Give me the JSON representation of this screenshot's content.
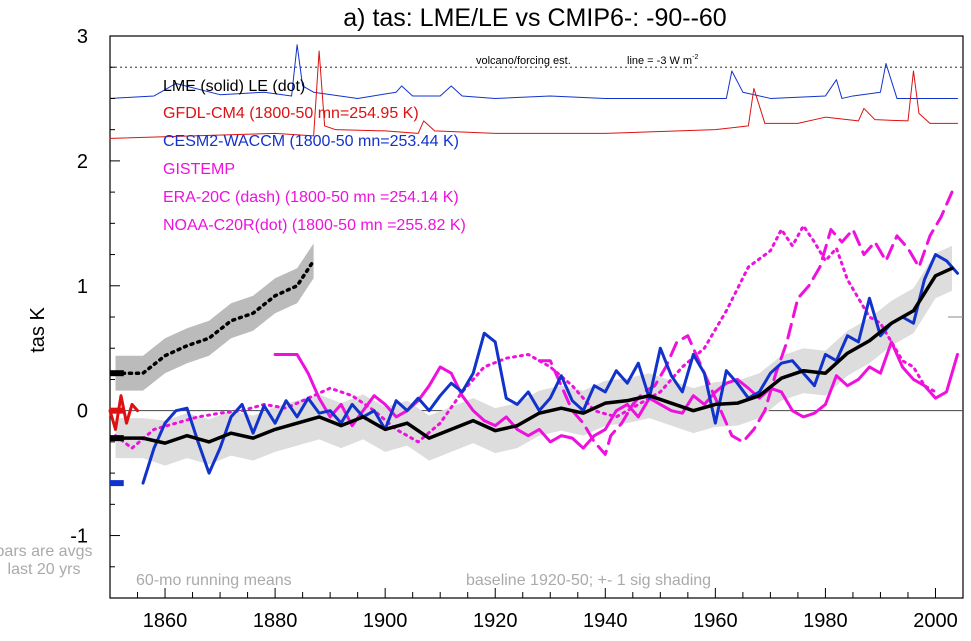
{
  "chart_data": {
    "type": "line",
    "title": "a) tas: LME/LE vs CMIP6-: -90--60",
    "ylabel": "tas K",
    "xlabel": "",
    "xlim": [
      1850,
      2005
    ],
    "ylim": [
      -1.5,
      3.0
    ],
    "xticks": [
      "1860",
      "1880",
      "1900",
      "1920",
      "1940",
      "1960",
      "1980",
      "2000"
    ],
    "yticks": [
      "-1",
      "0",
      "1",
      "2",
      "3"
    ],
    "legend": [
      {
        "label": "LME (solid)   LE (dot)",
        "color": "#000000"
      },
      {
        "label": "GFDL-CM4 (1800-50 mn=254.95 K)",
        "color": "#dd1111"
      },
      {
        "label": "CESM2-WACCM (1800-50 mn=253.44 K)",
        "color": "#1133cc"
      },
      {
        "label": "GISTEMP",
        "color": "#ee11dd"
      },
      {
        "label": "ERA-20C (dash) (1800-50 mn =254.14 K)",
        "color": "#ee11dd"
      },
      {
        "label": "NOAA-C20R(dot) (1800-50 mn =255.82 K)",
        "color": "#ee11dd"
      }
    ],
    "annotations": {
      "volcano": "volcano/forcing est.",
      "forcing_line": "line = -3 W m",
      "forcing_sup": "-2",
      "bars_note_1": "bars are avgs",
      "bars_note_2": "last 20 yrs",
      "running_mean": "60-mo running means",
      "baseline": "baseline 1920-50; +- 1 sig shading"
    },
    "colors": {
      "lme": "#000000",
      "gfdl": "#dd1111",
      "cesm": "#1133cc",
      "obs": "#ee11dd",
      "shade": "#cccccc"
    },
    "series": [
      {
        "name": "LME mean",
        "style": "solid",
        "color": "#000000",
        "x": [
          1851,
          1856,
          1860,
          1864,
          1868,
          1872,
          1876,
          1880,
          1884,
          1888,
          1892,
          1896,
          1900,
          1904,
          1908,
          1912,
          1916,
          1920,
          1924,
          1928,
          1932,
          1936,
          1940,
          1944,
          1948,
          1952,
          1956,
          1960,
          1964,
          1968,
          1972,
          1976,
          1980,
          1984,
          1988,
          1992,
          1996,
          2000,
          2003
        ],
        "values": [
          -0.22,
          -0.22,
          -0.26,
          -0.2,
          -0.25,
          -0.18,
          -0.22,
          -0.15,
          -0.1,
          -0.05,
          -0.12,
          -0.05,
          -0.15,
          -0.1,
          -0.22,
          -0.15,
          -0.08,
          -0.16,
          -0.12,
          -0.02,
          0.02,
          -0.02,
          0.06,
          0.08,
          0.12,
          0.06,
          0.0,
          0.05,
          0.06,
          0.12,
          0.26,
          0.32,
          0.3,
          0.46,
          0.56,
          0.7,
          0.8,
          1.08,
          1.14
        ],
        "band": [
          0.16,
          0.16,
          0.18,
          0.18,
          0.18,
          0.18,
          0.18,
          0.18,
          0.18,
          0.18,
          0.18,
          0.18,
          0.18,
          0.18,
          0.18,
          0.18,
          0.18,
          0.18,
          0.18,
          0.18,
          0.18,
          0.18,
          0.18,
          0.18,
          0.18,
          0.18,
          0.18,
          0.18,
          0.18,
          0.18,
          0.18,
          0.18,
          0.18,
          0.18,
          0.18,
          0.18,
          0.18,
          0.18,
          0.18
        ]
      },
      {
        "name": "LE mean",
        "style": "dot",
        "color": "#000000",
        "x": [
          1851,
          1856,
          1860,
          1864,
          1868,
          1872,
          1876,
          1880,
          1884,
          1887
        ],
        "values": [
          0.3,
          0.3,
          0.44,
          0.52,
          0.58,
          0.72,
          0.78,
          0.92,
          1.0,
          1.2
        ],
        "band": [
          0.14,
          0.14,
          0.14,
          0.14,
          0.14,
          0.14,
          0.14,
          0.14,
          0.14,
          0.14
        ]
      },
      {
        "name": "CESM2-WACCM",
        "style": "solid",
        "color": "#1133cc",
        "x": [
          1856,
          1858,
          1860,
          1862,
          1864,
          1866,
          1868,
          1870,
          1872,
          1874,
          1876,
          1878,
          1880,
          1882,
          1884,
          1886,
          1888,
          1890,
          1892,
          1894,
          1896,
          1898,
          1900,
          1902,
          1904,
          1906,
          1908,
          1910,
          1912,
          1914,
          1916,
          1918,
          1920,
          1922,
          1924,
          1926,
          1928,
          1930,
          1932,
          1934,
          1936,
          1938,
          1940,
          1942,
          1944,
          1946,
          1948,
          1950,
          1952,
          1954,
          1956,
          1958,
          1960,
          1962,
          1964,
          1966,
          1968,
          1970,
          1972,
          1974,
          1976,
          1978,
          1980,
          1982,
          1984,
          1986,
          1988,
          1990,
          1992,
          1994,
          1996,
          1998,
          2000,
          2002,
          2004
        ],
        "values": [
          -0.58,
          -0.3,
          -0.1,
          0.0,
          0.02,
          -0.25,
          -0.5,
          -0.3,
          -0.05,
          0.05,
          -0.18,
          0.04,
          -0.1,
          0.08,
          -0.05,
          0.1,
          -0.02,
          0.0,
          -0.1,
          0.05,
          -0.05,
          0.0,
          -0.15,
          0.08,
          0.0,
          0.1,
          0.0,
          0.12,
          0.22,
          0.15,
          0.3,
          0.62,
          0.55,
          0.1,
          0.05,
          0.15,
          0.0,
          0.1,
          0.28,
          0.08,
          0.0,
          0.2,
          0.15,
          0.32,
          0.22,
          0.38,
          0.1,
          0.5,
          0.28,
          0.15,
          0.45,
          0.3,
          -0.1,
          0.32,
          0.22,
          0.1,
          0.15,
          0.3,
          0.38,
          0.4,
          0.3,
          0.2,
          0.45,
          0.4,
          0.6,
          0.55,
          0.9,
          0.6,
          0.7,
          0.75,
          0.7,
          1.05,
          1.25,
          1.2,
          1.1
        ]
      },
      {
        "name": "GISTEMP",
        "style": "solid",
        "color": "#ee11dd",
        "x": [
          1880,
          1884,
          1886,
          1888,
          1890,
          1892,
          1894,
          1896,
          1898,
          1900,
          1902,
          1904,
          1906,
          1908,
          1910,
          1912,
          1914,
          1916,
          1918,
          1920,
          1922,
          1924,
          1926,
          1928,
          1930,
          1932,
          1934,
          1936,
          1938,
          1940,
          1942,
          1944,
          1946,
          1948,
          1950,
          1952,
          1954,
          1956,
          1958,
          1960,
          1962,
          1964,
          1966,
          1968,
          1970,
          1972,
          1974,
          1976,
          1978,
          1980,
          1982,
          1984,
          1986,
          1988,
          1990,
          1992,
          1994,
          1996,
          1998,
          2000,
          2002,
          2004
        ],
        "values": [
          0.45,
          0.45,
          0.3,
          0.1,
          -0.05,
          0.05,
          -0.12,
          0.0,
          0.12,
          0.05,
          -0.05,
          0.0,
          0.08,
          0.2,
          0.35,
          0.3,
          0.12,
          0.0,
          -0.08,
          -0.12,
          -0.05,
          -0.15,
          -0.2,
          -0.15,
          -0.25,
          -0.2,
          -0.22,
          -0.3,
          -0.2,
          -0.15,
          0.0,
          0.05,
          -0.05,
          0.1,
          0.05,
          0.0,
          -0.02,
          0.12,
          0.05,
          0.15,
          0.22,
          0.25,
          0.18,
          0.1,
          0.18,
          0.15,
          0.0,
          -0.05,
          -0.02,
          0.05,
          0.28,
          0.2,
          0.25,
          0.35,
          0.3,
          0.55,
          0.35,
          0.25,
          0.2,
          0.1,
          0.15,
          0.45
        ]
      },
      {
        "name": "ERA-20C",
        "style": "dash",
        "color": "#ee11dd",
        "x": [
          1928,
          1930,
          1932,
          1934,
          1936,
          1938,
          1940,
          1941,
          1943,
          1945,
          1947,
          1949,
          1951,
          1953,
          1955,
          1957,
          1959,
          1961,
          1963,
          1965,
          1967,
          1969,
          1971,
          1973,
          1975,
          1977,
          1979,
          1981,
          1983,
          1985,
          1987,
          1989,
          1991,
          1993,
          1995,
          1997,
          1999,
          2001,
          2003
        ],
        "values": [
          0.4,
          0.4,
          0.2,
          0.0,
          -0.1,
          -0.25,
          -0.35,
          -0.2,
          -0.1,
          0.05,
          0.15,
          0.2,
          0.35,
          0.55,
          0.6,
          0.4,
          0.2,
          0.0,
          -0.2,
          -0.25,
          -0.15,
          0.0,
          0.3,
          0.55,
          0.9,
          1.0,
          1.15,
          1.45,
          1.35,
          1.45,
          1.25,
          1.35,
          1.2,
          1.4,
          1.3,
          1.15,
          1.4,
          1.55,
          1.75
        ]
      },
      {
        "name": "NOAA-C20R",
        "style": "dot",
        "color": "#ee11dd",
        "x": [
          1851,
          1854,
          1858,
          1862,
          1866,
          1870,
          1874,
          1878,
          1882,
          1886,
          1890,
          1894,
          1898,
          1902,
          1906,
          1910,
          1914,
          1918,
          1922,
          1926,
          1930,
          1934,
          1938,
          1942,
          1946,
          1950,
          1954,
          1958,
          1962,
          1966,
          1970,
          1972,
          1974,
          1976,
          1978,
          1980,
          1982,
          1984,
          1986,
          1988,
          1990,
          1992,
          1994,
          1996,
          1998,
          2000
        ],
        "values": [
          -0.2,
          -0.3,
          -0.15,
          -0.1,
          -0.05,
          -0.02,
          0.0,
          0.05,
          0.02,
          0.1,
          0.18,
          0.12,
          0.0,
          -0.15,
          -0.25,
          -0.1,
          0.15,
          0.35,
          0.42,
          0.45,
          0.35,
          0.2,
          0.0,
          -0.05,
          0.05,
          0.15,
          0.35,
          0.5,
          0.8,
          1.15,
          1.28,
          1.45,
          1.32,
          1.48,
          1.35,
          1.2,
          1.3,
          1.05,
          0.9,
          0.75,
          0.7,
          0.55,
          0.4,
          0.35,
          0.2,
          0.15
        ]
      },
      {
        "name": "LME volcano/forcing",
        "style": "solid",
        "color": "#1133cc",
        "x": [
          1850,
          1858,
          1862,
          1870,
          1878,
          1883,
          1884,
          1885,
          1887,
          1895,
          1902,
          1903,
          1905,
          1910,
          1912,
          1914,
          1920,
          1930,
          1940,
          1950,
          1962,
          1963,
          1965,
          1970,
          1980,
          1982,
          1983,
          1985,
          1990,
          1991,
          1993,
          2000,
          2004
        ],
        "values": [
          2.5,
          2.52,
          2.62,
          2.53,
          2.55,
          2.52,
          2.93,
          2.6,
          2.55,
          2.5,
          2.55,
          2.6,
          2.52,
          2.52,
          2.6,
          2.52,
          2.5,
          2.52,
          2.5,
          2.5,
          2.5,
          2.72,
          2.55,
          2.5,
          2.52,
          2.65,
          2.5,
          2.52,
          2.55,
          2.78,
          2.5,
          2.5,
          2.5
        ]
      },
      {
        "name": "GFDL-CM4 volcano/forcing",
        "style": "solid",
        "color": "#dd1111",
        "x": [
          1850,
          1880,
          1887,
          1888,
          1889,
          1891,
          1900,
          1906,
          1907,
          1909,
          1920,
          1940,
          1960,
          1966,
          1967,
          1969,
          1975,
          1980,
          1986,
          1987,
          1989,
          1995,
          1996,
          1997,
          1999,
          2004
        ],
        "values": [
          2.18,
          2.22,
          2.2,
          2.88,
          2.28,
          2.25,
          2.24,
          2.22,
          2.32,
          2.24,
          2.22,
          2.22,
          2.25,
          2.28,
          2.58,
          2.3,
          2.3,
          2.35,
          2.32,
          2.42,
          2.33,
          2.32,
          2.72,
          2.38,
          2.3,
          2.3
        ]
      },
      {
        "name": "GFDL-CM4 bar",
        "style": "solid",
        "color": "#dd1111",
        "x": [
          1850,
          1851,
          1852,
          1853,
          1854,
          1855
        ],
        "values": [
          0.0,
          -0.15,
          0.12,
          -0.1,
          0.05,
          0.0
        ]
      }
    ]
  }
}
